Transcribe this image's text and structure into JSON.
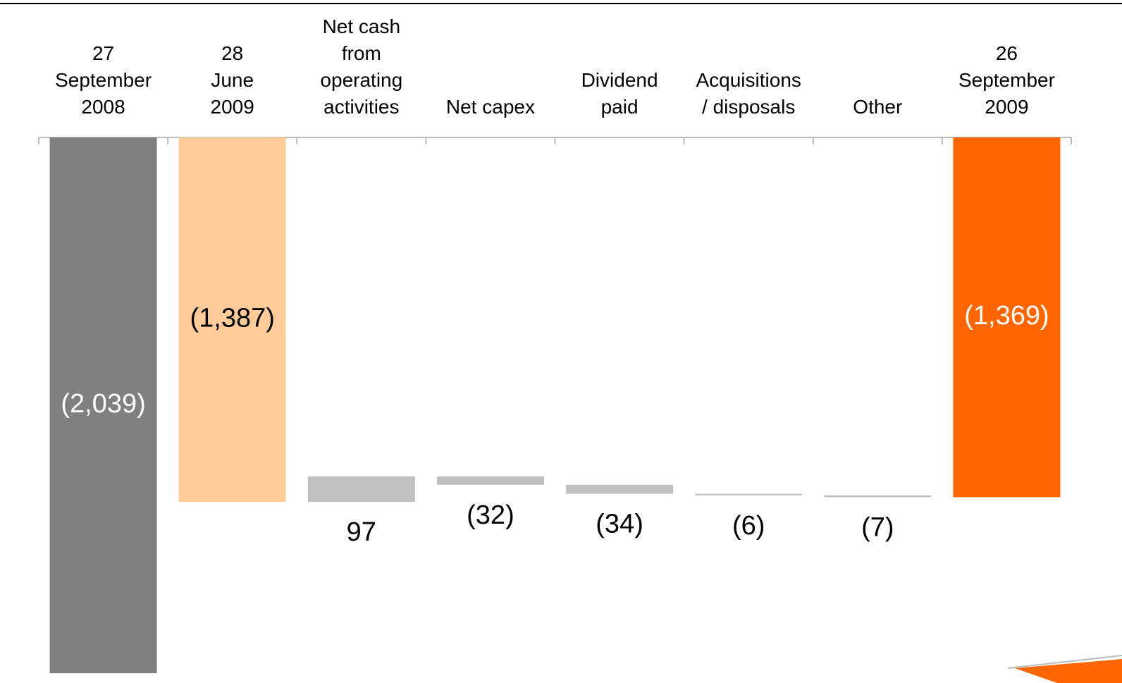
{
  "chart_data": {
    "type": "waterfall",
    "categories": [
      "27\nSeptember\n2008",
      "28\nJune\n2009",
      "Net cash\nfrom\noperating\nactivities",
      "Net capex",
      "Dividend\npaid",
      "Acquisitions\n/ disposals",
      "Other",
      "26\nSeptember\n2009"
    ],
    "values": [
      -2039,
      -1387,
      97,
      -32,
      -34,
      -6,
      -7,
      -1369
    ],
    "value_labels": [
      "(2,039)",
      "(1,387)",
      "97",
      "(32)",
      "(34)",
      "(6)",
      "(7)",
      "(1,369)"
    ],
    "totals": [
      true,
      true,
      false,
      false,
      false,
      false,
      false,
      true
    ],
    "colors": [
      "#808080",
      "#ffcc99",
      "#c0c0c0",
      "#c0c0c0",
      "#c0c0c0",
      "#c0c0c0",
      "#c0c0c0",
      "#ff6600"
    ],
    "label_colors": [
      "#ffffff",
      "#000000",
      "#000000",
      "#000000",
      "#000000",
      "#000000",
      "#000000",
      "#ffffff"
    ],
    "ylim": [
      -2000,
      0
    ]
  }
}
